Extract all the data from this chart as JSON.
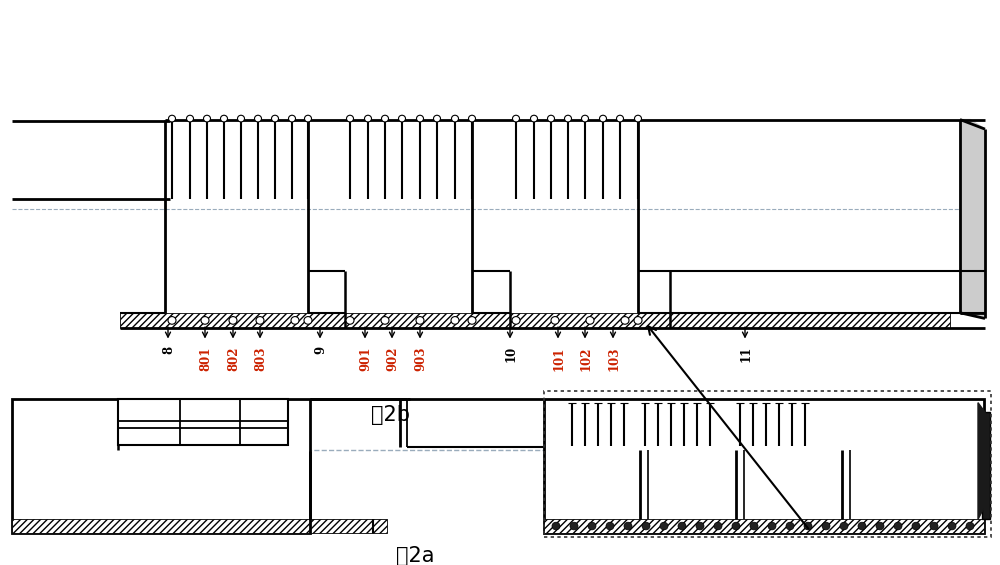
{
  "bg_color": "#ffffff",
  "lc": "#000000",
  "fig2a_label": "图2a",
  "fig2b_label": "图2b",
  "label_items": [
    [
      168,
      "8",
      "#000000"
    ],
    [
      205,
      "801",
      "#cc2200"
    ],
    [
      233,
      "802",
      "#cc2200"
    ],
    [
      260,
      "803",
      "#cc2200"
    ],
    [
      320,
      "9",
      "#000000"
    ],
    [
      365,
      "901",
      "#cc2200"
    ],
    [
      392,
      "902",
      "#cc2200"
    ],
    [
      420,
      "903",
      "#cc2200"
    ],
    [
      510,
      "10",
      "#000000"
    ],
    [
      558,
      "101",
      "#cc2200"
    ],
    [
      585,
      "102",
      "#cc2200"
    ],
    [
      613,
      "103",
      "#cc2200"
    ],
    [
      745,
      "11",
      "#000000"
    ]
  ],
  "centerline_color": "#9aacbc",
  "dotted_color": "#555555"
}
